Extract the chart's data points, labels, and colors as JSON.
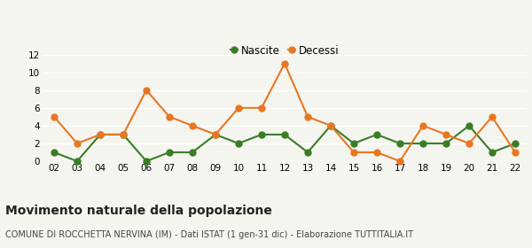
{
  "years": [
    "02",
    "03",
    "04",
    "05",
    "06",
    "07",
    "08",
    "09",
    "10",
    "11",
    "12",
    "13",
    "14",
    "15",
    "16",
    "17",
    "18",
    "19",
    "20",
    "21",
    "22"
  ],
  "nascite": [
    1,
    0,
    3,
    3,
    0,
    1,
    1,
    3,
    2,
    3,
    3,
    1,
    4,
    2,
    3,
    2,
    2,
    2,
    4,
    1,
    2
  ],
  "decessi": [
    5,
    2,
    3,
    3,
    8,
    5,
    4,
    3,
    6,
    6,
    11,
    5,
    4,
    1,
    1,
    0,
    4,
    3,
    2,
    5,
    1
  ],
  "nascite_color": "#3a7d27",
  "decessi_color": "#e87722",
  "marker_size": 5,
  "line_width": 1.5,
  "ylim": [
    0,
    12
  ],
  "yticks": [
    0,
    2,
    4,
    6,
    8,
    10,
    12
  ],
  "title": "Movimento naturale della popolazione",
  "subtitle": "COMUNE DI ROCCHETTA NERVINA (IM) - Dati ISTAT (1 gen-31 dic) - Elaborazione TUTTITALIA.IT",
  "title_fontsize": 10,
  "subtitle_fontsize": 7,
  "legend_nascite": "Nascite",
  "legend_decessi": "Decessi",
  "background_color": "#f5f5f0",
  "grid_color": "#ffffff"
}
